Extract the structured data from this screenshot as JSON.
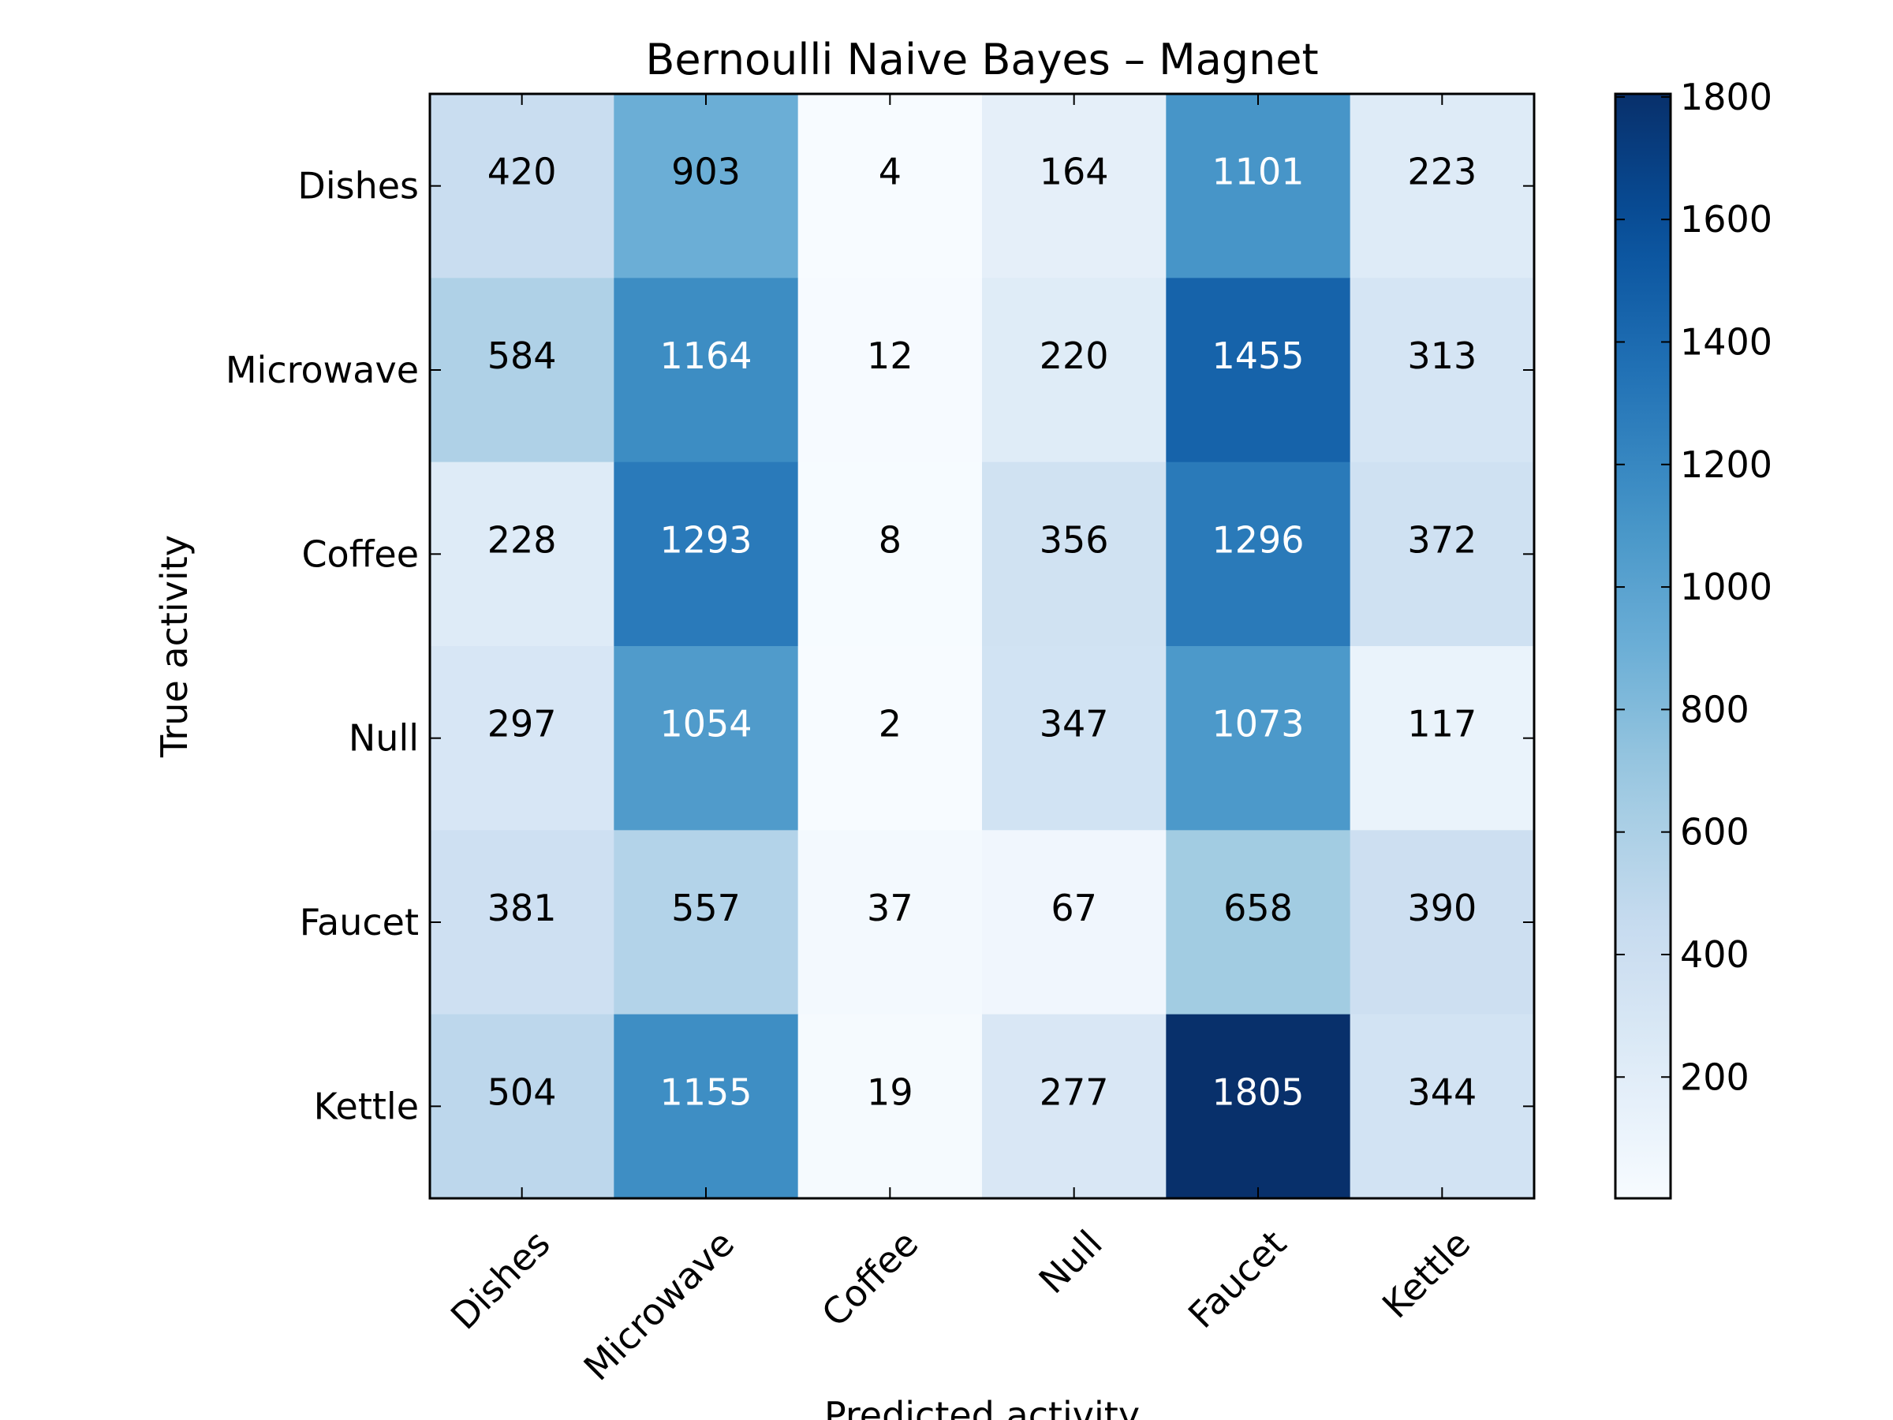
{
  "chart_data": {
    "type": "heatmap",
    "title": "Bernoulli Naive Bayes – Magnet",
    "xlabel": "Predicted activity",
    "ylabel": "True activity",
    "x_categories": [
      "Dishes",
      "Microwave",
      "Coffee",
      "Null",
      "Faucet",
      "Kettle"
    ],
    "y_categories": [
      "Dishes",
      "Microwave",
      "Coffee",
      "Null",
      "Faucet",
      "Kettle"
    ],
    "values": [
      [
        420,
        903,
        4,
        164,
        1101,
        223
      ],
      [
        584,
        1164,
        12,
        220,
        1455,
        313
      ],
      [
        228,
        1293,
        8,
        356,
        1296,
        372
      ],
      [
        297,
        1054,
        2,
        347,
        1073,
        117
      ],
      [
        381,
        557,
        37,
        67,
        658,
        390
      ],
      [
        504,
        1155,
        19,
        277,
        1805,
        344
      ]
    ],
    "colorbar": {
      "min": 2,
      "max": 1805,
      "ticks": [
        200,
        400,
        600,
        800,
        1000,
        1200,
        1400,
        1600,
        1800
      ],
      "colormap": "Blues"
    },
    "grid": false
  }
}
